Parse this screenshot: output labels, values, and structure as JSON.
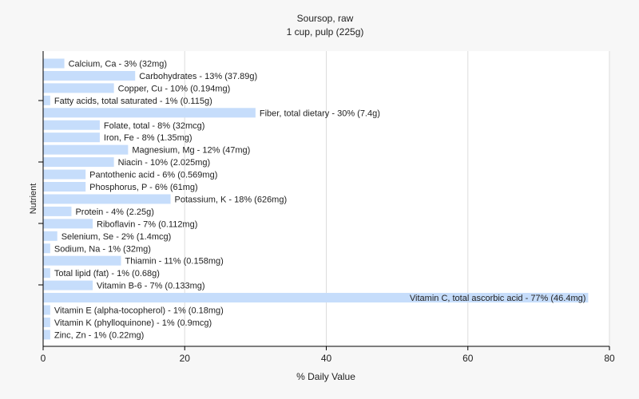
{
  "chart_data": {
    "type": "bar",
    "orientation": "horizontal",
    "title": "Soursop, raw",
    "subtitle": "1 cup, pulp (225g)",
    "xlabel": "% Daily Value",
    "ylabel": "Nutrient",
    "xlim": [
      0,
      80
    ],
    "xticks": [
      0,
      20,
      40,
      60,
      80
    ],
    "grid": true,
    "legend": "none",
    "colors": {
      "bar": "#c6ddfb",
      "grid": "#dddddd",
      "axis": "#000000",
      "text": "#222222",
      "background": "#f7f7f7",
      "plot_background": "#ffffff"
    },
    "categories": [
      "Calcium, Ca",
      "Carbohydrates",
      "Copper, Cu",
      "Fatty acids, total saturated",
      "Fiber, total dietary",
      "Folate, total",
      "Iron, Fe",
      "Magnesium, Mg",
      "Niacin",
      "Pantothenic acid",
      "Phosphorus, P",
      "Potassium, K",
      "Protein",
      "Riboflavin",
      "Selenium, Se",
      "Sodium, Na",
      "Thiamin",
      "Total lipid (fat)",
      "Vitamin B-6",
      "Vitamin C, total ascorbic acid",
      "Vitamin E (alpha-tocopherol)",
      "Vitamin K (phylloquinone)",
      "Zinc, Zn"
    ],
    "values": [
      3,
      13,
      10,
      1,
      30,
      8,
      8,
      12,
      10,
      6,
      6,
      18,
      4,
      7,
      2,
      1,
      11,
      1,
      7,
      77,
      1,
      1,
      1
    ],
    "labels": [
      "Calcium, Ca - 3% (32mg)",
      "Carbohydrates - 13% (37.89g)",
      "Copper, Cu - 10% (0.194mg)",
      "Fatty acids, total saturated - 1% (0.115g)",
      "Fiber, total dietary - 30% (7.4g)",
      "Folate, total - 8% (32mcg)",
      "Iron, Fe - 8% (1.35mg)",
      "Magnesium, Mg - 12% (47mg)",
      "Niacin - 10% (2.025mg)",
      "Pantothenic acid - 6% (0.569mg)",
      "Phosphorus, P - 6% (61mg)",
      "Potassium, K - 18% (626mg)",
      "Protein - 4% (2.25g)",
      "Riboflavin - 7% (0.112mg)",
      "Selenium, Se - 2% (1.4mcg)",
      "Sodium, Na - 1% (32mg)",
      "Thiamin - 11% (0.158mg)",
      "Total lipid (fat) - 1% (0.68g)",
      "Vitamin B-6 - 7% (0.133mg)",
      "Vitamin C, total ascorbic acid - 77% (46.4mg)",
      "Vitamin E (alpha-tocopherol) - 1% (0.18mg)",
      "Vitamin K (phylloquinone) - 1% (0.9mcg)",
      "Zinc, Zn - 1% (0.22mg)"
    ]
  }
}
